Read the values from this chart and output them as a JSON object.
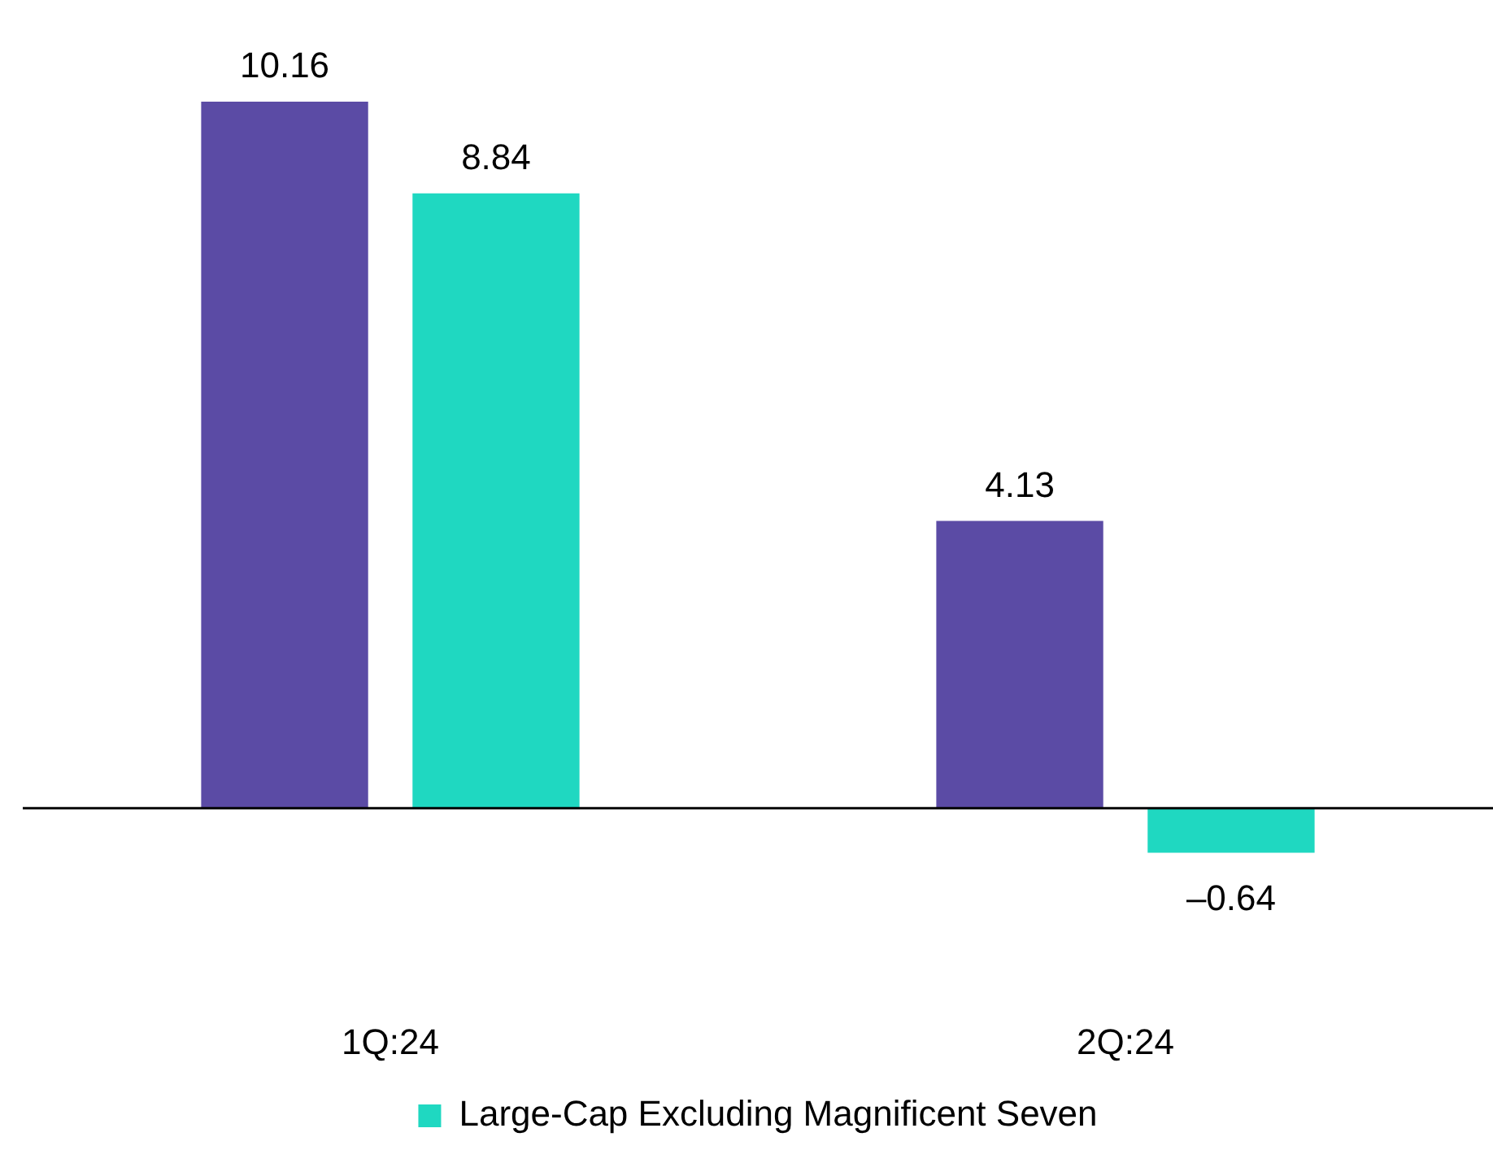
{
  "chart_data": {
    "type": "bar",
    "categories": [
      "1Q:24",
      "2Q:24"
    ],
    "series": [
      {
        "color": "#5b4ba5",
        "values": [
          10.16,
          4.13
        ]
      },
      {
        "name": "Large-Cap Excluding Magnificent Seven",
        "color": "#1fd8c1",
        "values": [
          8.84,
          -0.64
        ],
        "value_labels": [
          "8.84",
          "–0.64"
        ]
      }
    ],
    "data_labels": true,
    "legend": "bottom",
    "grid": false
  }
}
